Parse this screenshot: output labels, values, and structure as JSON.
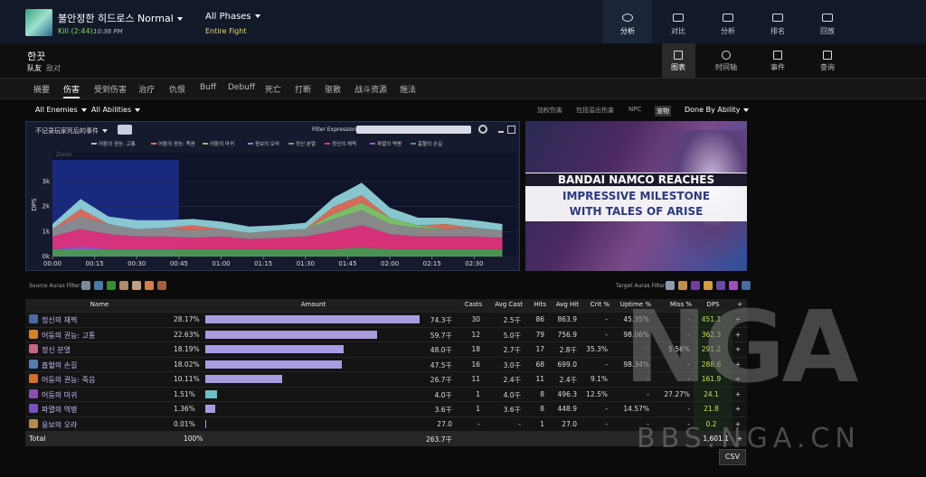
{
  "header": {
    "encounter": "불안정한 히드로스 Normal",
    "result": "Kill (2:44)",
    "time": "10:36 PM",
    "phase": "All Phases",
    "phase_sub": "Entire Fight",
    "tabs": [
      "分析",
      "对比",
      "分析",
      "排名",
      "回放"
    ]
  },
  "player": {
    "name": "한끗",
    "mode_tabs": [
      "队友",
      "敌对"
    ],
    "view_tabs": [
      "图表",
      "时间轴",
      "事件",
      "查询"
    ]
  },
  "nav": {
    "items": [
      "摘要",
      "伤害",
      "受到伤害",
      "治疗",
      "仇恨",
      "Buff",
      "Debuff",
      "死亡",
      "打断",
      "驱散",
      "战斗资源",
      "施法"
    ],
    "active": 1
  },
  "filters": {
    "enemies": "All Enemies",
    "abilities": "All Abilities",
    "options": [
      "加权伤害",
      "包括溢出伤害",
      "NPC",
      "宠物"
    ],
    "done_by": "Done By Ability"
  },
  "chart_data": {
    "type": "area",
    "stacked": true,
    "toggle_label": "不记录玩家死后的事件",
    "filter_label": "Filter Expression:",
    "zoom_label": "Zoom",
    "ylabel": "DPS",
    "x": [
      0,
      10,
      20,
      30,
      40,
      50,
      60,
      70,
      80,
      90,
      100,
      110,
      120,
      130,
      140,
      150,
      160
    ],
    "series": [
      {
        "name": "어둠의 권능: 고통",
        "color": "#8fd0d6",
        "values": [
          200,
          400,
          300,
          350,
          300,
          250,
          300,
          250,
          200,
          250,
          350,
          500,
          400,
          300,
          250,
          300,
          250
        ]
      },
      {
        "name": "어둠의 권능: 죽음",
        "color": "#e0705c",
        "values": [
          0,
          300,
          0,
          0,
          0,
          200,
          0,
          0,
          0,
          0,
          300,
          300,
          0,
          0,
          200,
          0,
          0
        ]
      },
      {
        "name": "어둠의 마귀",
        "color": "#7fc76a",
        "values": [
          0,
          0,
          0,
          0,
          0,
          0,
          0,
          0,
          0,
          0,
          200,
          300,
          250,
          100,
          0,
          0,
          0
        ]
      },
      {
        "name": "응보의 오라",
        "color": "#6f8fd8",
        "values": [
          0,
          0,
          0,
          0,
          0,
          0,
          0,
          0,
          0,
          0,
          0,
          0,
          0,
          0,
          0,
          0,
          0
        ]
      },
      {
        "name": "정신 분열",
        "color": "#8e8e8e",
        "values": [
          300,
          500,
          400,
          300,
          350,
          300,
          300,
          250,
          300,
          300,
          500,
          600,
          400,
          350,
          300,
          350,
          300
        ]
      },
      {
        "name": "정신의 채찍",
        "color": "#e2337c",
        "values": [
          500,
          700,
          600,
          500,
          500,
          450,
          500,
          400,
          450,
          500,
          700,
          900,
          600,
          500,
          500,
          500,
          450
        ]
      },
      {
        "name": "파멸의 역병",
        "color": "#9b59d0",
        "values": [
          0,
          100,
          0,
          0,
          0,
          0,
          0,
          0,
          0,
          0,
          0,
          0,
          0,
          0,
          0,
          0,
          0
        ]
      },
      {
        "name": "흡혈의 손길",
        "color": "#4f9a55",
        "values": [
          300,
          300,
          300,
          300,
          300,
          300,
          300,
          300,
          300,
          300,
          300,
          350,
          300,
          300,
          300,
          300,
          300
        ]
      }
    ],
    "xlim": [
      0,
      165
    ],
    "ylim": [
      0,
      4150
    ],
    "selection": [
      0,
      45
    ],
    "xticks": [
      {
        "value": 0,
        "label": "00:00"
      },
      {
        "value": 15,
        "label": "00:15"
      },
      {
        "value": 30,
        "label": "00:30"
      },
      {
        "value": 45,
        "label": "00:45"
      },
      {
        "value": 60,
        "label": "01:00"
      },
      {
        "value": 75,
        "label": "01:15"
      },
      {
        "value": 90,
        "label": "01:30"
      },
      {
        "value": 105,
        "label": "01:45"
      },
      {
        "value": 120,
        "label": "02:00"
      },
      {
        "value": 135,
        "label": "02:15"
      },
      {
        "value": 150,
        "label": "02:30"
      }
    ],
    "yticks": [
      {
        "value": 0,
        "label": "0k"
      },
      {
        "value": 1000,
        "label": "1k"
      },
      {
        "value": 2000,
        "label": "2k"
      },
      {
        "value": 3000,
        "label": "3k"
      }
    ]
  },
  "ad": {
    "lines": [
      "BANDAI NAMCO REACHES",
      "IMPRESSIVE MILESTONE",
      "WITH TALES OF ARISE"
    ]
  },
  "auras": {
    "source": "Source Auras Filter:",
    "target": "Target Auras Filter:"
  },
  "table": {
    "columns": [
      "Name",
      "Amount",
      "Casts",
      "Avg Cast",
      "Hits",
      "Avg Hit",
      "Crit %",
      "Uptime %",
      "Miss %",
      "DPS",
      "+"
    ],
    "rows": [
      {
        "name": "정신의 채찍",
        "percent": {
          "value": 28.17,
          "label": "28.17%"
        },
        "cells": [
          "74.3千",
          "30",
          "2.5千",
          "86",
          "863.9",
          "-",
          "45.35%",
          "-",
          "451.1",
          "+"
        ]
      },
      {
        "name": "어둠의 권능: 고통",
        "percent": {
          "value": 22.63,
          "label": "22.63%"
        },
        "cells": [
          "59.7千",
          "12",
          "5.0千",
          "79",
          "756.9",
          "-",
          "98.06%",
          "-",
          "362.3",
          "+"
        ]
      },
      {
        "name": "정신 분열",
        "percent": {
          "value": 18.19,
          "label": "18.19%"
        },
        "cells": [
          "48.0千",
          "18",
          "2.7千",
          "17",
          "2.8千",
          "35.3%",
          "-",
          "5.56%",
          "291.2",
          "+"
        ]
      },
      {
        "name": "흡혈의 손길",
        "percent": {
          "value": 18.02,
          "label": "18.02%"
        },
        "cells": [
          "47.5千",
          "16",
          "3.0千",
          "68",
          "699.0",
          "-",
          "98.34%",
          "-",
          "288.6",
          "+"
        ]
      },
      {
        "name": "어둠의 권능: 죽음",
        "percent": {
          "value": 10.11,
          "label": "10.11%"
        },
        "cells": [
          "26.7千",
          "11",
          "2.4千",
          "11",
          "2.4千",
          "9.1%",
          "-",
          "-",
          "161.9",
          "+"
        ]
      },
      {
        "name": "어둠의 마귀",
        "percent": {
          "value": 1.51,
          "label": "1.51%"
        },
        "cells": [
          "4.0千",
          "1",
          "4.0千",
          "8",
          "496.3",
          "12.5%",
          "-",
          "27.27%",
          "24.1",
          "+"
        ]
      },
      {
        "name": "파멸의 역병",
        "percent": {
          "value": 1.36,
          "label": "1.36%"
        },
        "cells": [
          "3.6千",
          "1",
          "3.6千",
          "8",
          "448.9",
          "-",
          "14.57%",
          "-",
          "21.8",
          "+"
        ]
      },
      {
        "name": "응보의 오라",
        "percent": {
          "value": 0.01,
          "label": "0.01%"
        },
        "cells": [
          "27.0",
          "-",
          "-",
          "1",
          "27.0",
          "-",
          "-",
          "-",
          "0.2",
          "+"
        ]
      }
    ],
    "total": {
      "name": "Total",
      "percent": "100%",
      "amount": "263.7千",
      "dps": "1,601.1",
      "expand": "+"
    },
    "csv": "CSV"
  },
  "watermark": {
    "logo": "NGA",
    "site": "BBS.NGA.CN"
  }
}
